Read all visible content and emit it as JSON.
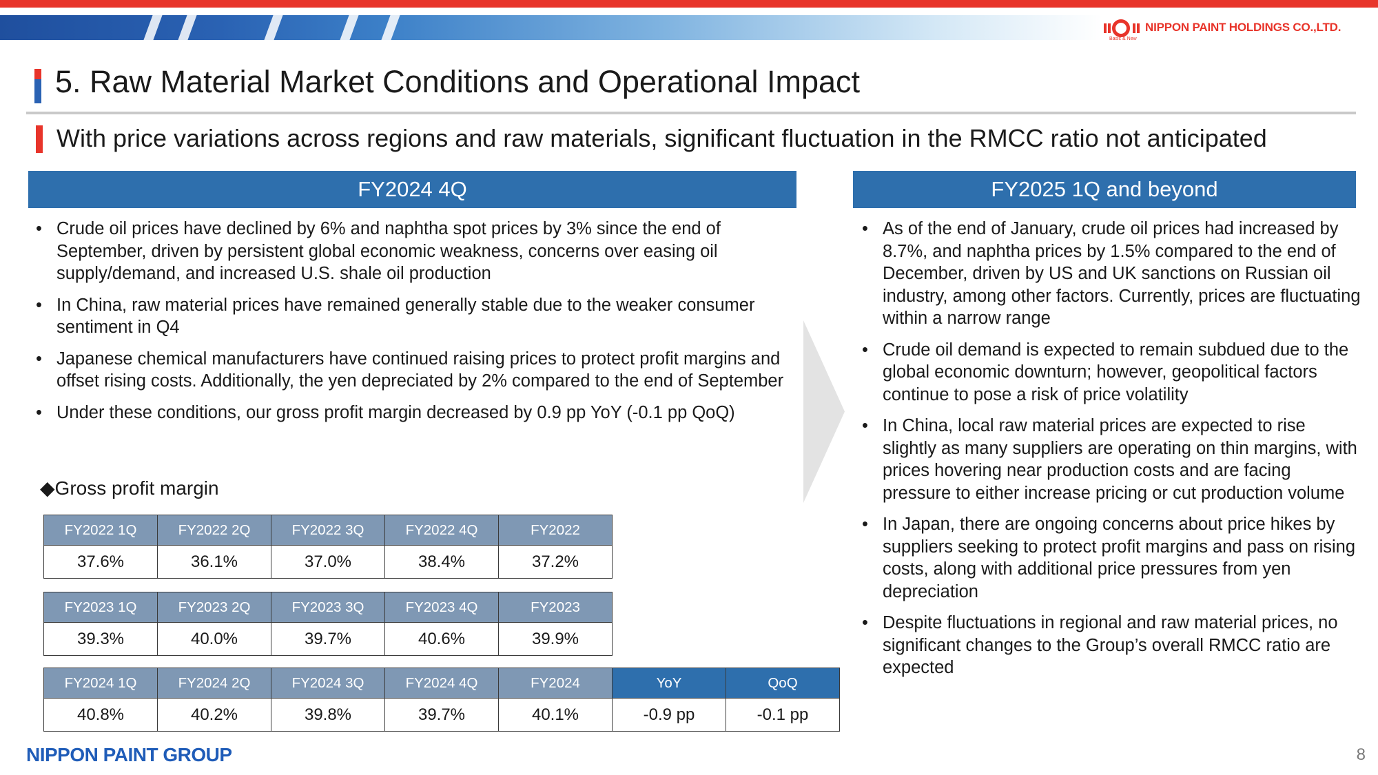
{
  "header": {
    "company_name": "NIPPON PAINT HOLDINGS CO.,LTD.",
    "logo_tagline": "Basic & New"
  },
  "page": {
    "title": "5. Raw Material Market Conditions and Operational Impact",
    "subtitle": "With price variations across regions and raw materials, significant fluctuation in the RMCC ratio not anticipated"
  },
  "left_column": {
    "heading": "FY2024 4Q",
    "bullets": [
      "Crude oil prices have declined by 6% and naphtha spot prices by 3% since the end of September, driven by persistent global economic weakness, concerns over easing oil supply/demand, and increased U.S. shale oil production",
      "In China, raw material prices have remained generally stable due to the weaker consumer sentiment in Q4",
      "Japanese chemical manufacturers have continued raising prices to protect profit margins and offset rising costs. Additionally, the yen depreciated by 2% compared to the end of September",
      "Under these conditions, our gross profit margin decreased by 0.9 pp YoY (-0.1 pp QoQ)"
    ]
  },
  "right_column": {
    "heading": "FY2025 1Q and beyond",
    "bullets": [
      "As of the end of January, crude oil prices had increased by 8.7%, and naphtha prices by 1.5% compared to the end of December, driven by US and UK sanctions on Russian oil industry, among other factors. Currently, prices are fluctuating within a narrow range",
      "Crude oil demand is expected to remain subdued due to the global economic downturn; however, geopolitical factors continue to pose a risk of price volatility",
      "In China, local raw material prices are expected to rise slightly as many suppliers are operating on thin margins, with prices hovering near production costs and are facing pressure to either increase pricing or cut production volume",
      "In Japan, there are ongoing concerns about price hikes by suppliers seeking to protect profit margins and pass on rising costs, along with additional price pressures from yen depreciation",
      "Despite fluctuations in regional and raw material prices, no significant changes to the Group’s overall RMCC ratio are expected"
    ]
  },
  "gross_profit_margin": {
    "label": "◆Gross profit margin",
    "tables": [
      {
        "headers": [
          "FY2022 1Q",
          "FY2022 2Q",
          "FY2022 3Q",
          "FY2022 4Q",
          "FY2022"
        ],
        "values": [
          "37.6%",
          "36.1%",
          "37.0%",
          "38.4%",
          "37.2%"
        ]
      },
      {
        "headers": [
          "FY2023 1Q",
          "FY2023 2Q",
          "FY2023 3Q",
          "FY2023 4Q",
          "FY2023"
        ],
        "values": [
          "39.3%",
          "40.0%",
          "39.7%",
          "40.6%",
          "39.9%"
        ]
      },
      {
        "headers": [
          "FY2024 1Q",
          "FY2024 2Q",
          "FY2024 3Q",
          "FY2024 4Q",
          "FY2024",
          "YoY",
          "QoQ"
        ],
        "values": [
          "40.8%",
          "40.2%",
          "39.8%",
          "39.7%",
          "40.1%",
          "-0.9 pp",
          "-0.1 pp"
        ]
      }
    ]
  },
  "footer": {
    "group_name": "NIPPON PAINT GROUP",
    "page_number": "8"
  },
  "colors": {
    "accent_red": "#e8342a",
    "brand_blue": "#2e6fad",
    "table_header": "#7f98b4"
  }
}
